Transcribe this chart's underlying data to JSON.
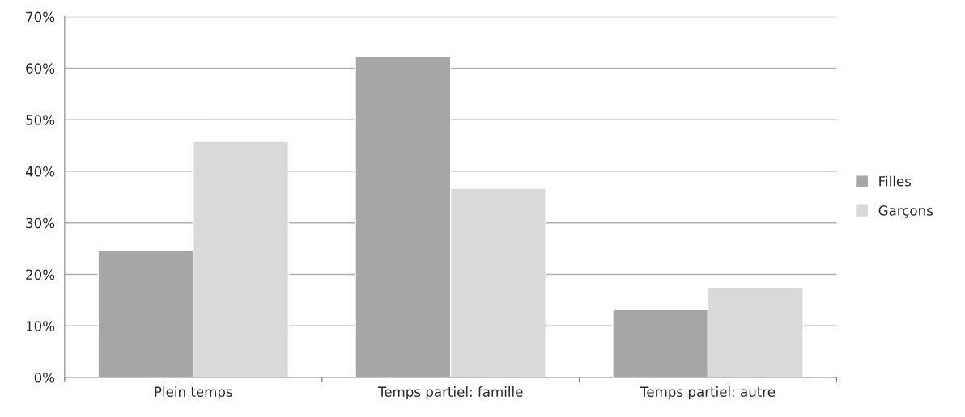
{
  "chart_data": {
    "type": "bar",
    "categories": [
      "Plein temps",
      "Temps partiel: famille",
      "Temps partiel: autre"
    ],
    "series": [
      {
        "name": "Filles",
        "color": "#a6a6a6",
        "values": [
          24.6,
          62.2,
          13.2
        ]
      },
      {
        "name": "Garçons",
        "color": "#d9d9d9",
        "values": [
          45.8,
          36.7,
          17.5
        ]
      }
    ],
    "ylim": [
      0,
      70
    ],
    "yticks": [
      {
        "value": 0,
        "label": "0%"
      },
      {
        "value": 10,
        "label": "10%"
      },
      {
        "value": 20,
        "label": "20%"
      },
      {
        "value": 30,
        "label": "30%"
      },
      {
        "value": 40,
        "label": "40%"
      },
      {
        "value": 50,
        "label": "50%"
      },
      {
        "value": 60,
        "label": "60%"
      },
      {
        "value": 70,
        "label": "70%"
      }
    ],
    "grid": "y",
    "legend": "right"
  }
}
